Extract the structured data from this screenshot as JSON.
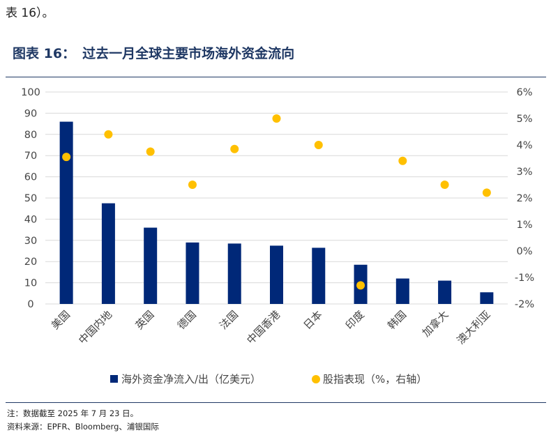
{
  "header": {
    "intro_text": "表 16）。",
    "figure_label": "图表 16：",
    "figure_title": "过去一月全球主要市场海外资金流向"
  },
  "footer": {
    "note": "注：数据截至 2025 年 7 月 23 日。",
    "source": "资料来源：EPFR、Bloomberg、浦银国际"
  },
  "colors": {
    "bar": "#002878",
    "dot": "#ffc000",
    "title": "#1f3864",
    "grid": "#d9d9d9"
  },
  "chart_data": {
    "type": "bar",
    "title": "过去一月全球主要市场海外资金流向",
    "categories": [
      "美国",
      "中国内地",
      "英国",
      "德国",
      "法国",
      "中国香港",
      "日本",
      "印度",
      "韩国",
      "加拿大",
      "澳大利亚"
    ],
    "series": [
      {
        "name": "海外资金净流入/出（亿美元）",
        "type": "bar",
        "axis": "left",
        "values": [
          86,
          47.5,
          36,
          29,
          28.5,
          27.5,
          26.5,
          18.5,
          12,
          11,
          5.5
        ]
      },
      {
        "name": "股指表现（%，右轴）",
        "type": "scatter",
        "axis": "right",
        "values": [
          3.55,
          4.4,
          3.75,
          2.5,
          3.85,
          5.0,
          4.0,
          -1.3,
          3.4,
          2.5,
          2.2
        ]
      }
    ],
    "y_left": {
      "min": 0,
      "max": 100,
      "step": 10,
      "ticks": [
        "0",
        "10",
        "20",
        "30",
        "40",
        "50",
        "60",
        "70",
        "80",
        "90",
        "100"
      ]
    },
    "y_right": {
      "min": -2,
      "max": 6,
      "step": 1,
      "ticks": [
        "-2%",
        "-1%",
        "0%",
        "1%",
        "2%",
        "3%",
        "4%",
        "5%",
        "6%"
      ]
    },
    "legend_position": "bottom",
    "grid": true
  }
}
